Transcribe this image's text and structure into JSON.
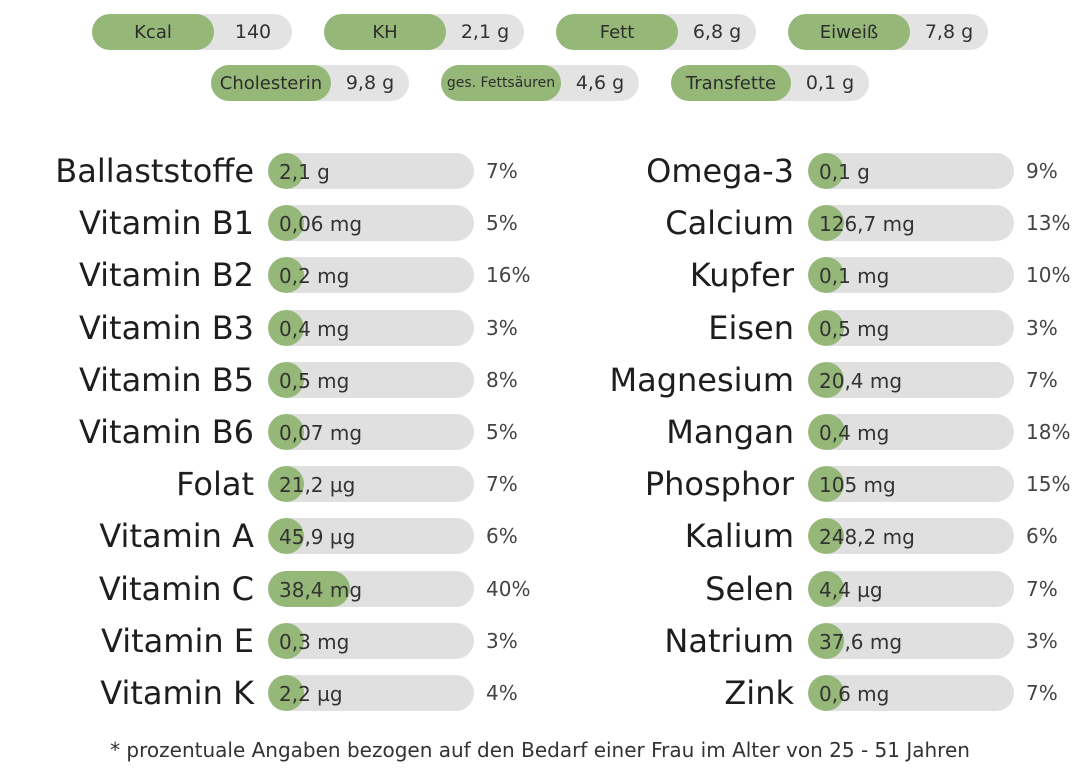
{
  "colors": {
    "accent": "#95b878",
    "track": "#e0e0e0"
  },
  "summary_row1": [
    {
      "label": "Kcal",
      "value": "140"
    },
    {
      "label": "KH",
      "value": "2,1 g"
    },
    {
      "label": "Fett",
      "value": "6,8 g"
    },
    {
      "label": "Eiweiß",
      "value": "7,8 g"
    }
  ],
  "summary_row2": [
    {
      "label": "Cholesterin",
      "value": "9,8 g"
    },
    {
      "label": "ges. Fettsäuren",
      "value": "4,6 g"
    },
    {
      "label": "Transfette",
      "value": "0,1 g"
    }
  ],
  "left": [
    {
      "name": "Ballaststoffe",
      "amount": "2,1 g",
      "percent": "7%",
      "level": 0.07
    },
    {
      "name": "Vitamin B1",
      "amount": "0,06 mg",
      "percent": "5%",
      "level": 0.05
    },
    {
      "name": "Vitamin B2",
      "amount": "0,2 mg",
      "percent": "16%",
      "level": 0.16
    },
    {
      "name": "Vitamin B3",
      "amount": "0,4 mg",
      "percent": "3%",
      "level": 0.03
    },
    {
      "name": "Vitamin B5",
      "amount": "0,5 mg",
      "percent": "8%",
      "level": 0.08
    },
    {
      "name": "Vitamin B6",
      "amount": "0,07 mg",
      "percent": "5%",
      "level": 0.05
    },
    {
      "name": "Folat",
      "amount": "21,2 µg",
      "percent": "7%",
      "level": 0.07
    },
    {
      "name": "Vitamin A",
      "amount": "45,9 µg",
      "percent": "6%",
      "level": 0.06
    },
    {
      "name": "Vitamin C",
      "amount": "38,4 mg",
      "percent": "40%",
      "level": 0.4
    },
    {
      "name": "Vitamin E",
      "amount": "0,3 mg",
      "percent": "3%",
      "level": 0.03
    },
    {
      "name": "Vitamin K",
      "amount": "2,2 µg",
      "percent": "4%",
      "level": 0.04
    }
  ],
  "right": [
    {
      "name": "Omega-3",
      "amount": "0,1 g",
      "percent": "9%",
      "level": 0.09
    },
    {
      "name": "Calcium",
      "amount": "126,7 mg",
      "percent": "13%",
      "level": 0.13
    },
    {
      "name": "Kupfer",
      "amount": "0,1 mg",
      "percent": "10%",
      "level": 0.1
    },
    {
      "name": "Eisen",
      "amount": "0,5 mg",
      "percent": "3%",
      "level": 0.03
    },
    {
      "name": "Magnesium",
      "amount": "20,4 mg",
      "percent": "7%",
      "level": 0.07
    },
    {
      "name": "Mangan",
      "amount": "0,4 mg",
      "percent": "18%",
      "level": 0.18
    },
    {
      "name": "Phosphor",
      "amount": "105 mg",
      "percent": "15%",
      "level": 0.15
    },
    {
      "name": "Kalium",
      "amount": "248,2 mg",
      "percent": "6%",
      "level": 0.06
    },
    {
      "name": "Selen",
      "amount": "4,4 µg",
      "percent": "7%",
      "level": 0.07
    },
    {
      "name": "Natrium",
      "amount": "37,6 mg",
      "percent": "3%",
      "level": 0.03
    },
    {
      "name": "Zink",
      "amount": "0,6 mg",
      "percent": "7%",
      "level": 0.07
    }
  ],
  "footnote": "* prozentuale Angaben bezogen auf den Bedarf einer Frau im Alter von 25 - 51 Jahren"
}
